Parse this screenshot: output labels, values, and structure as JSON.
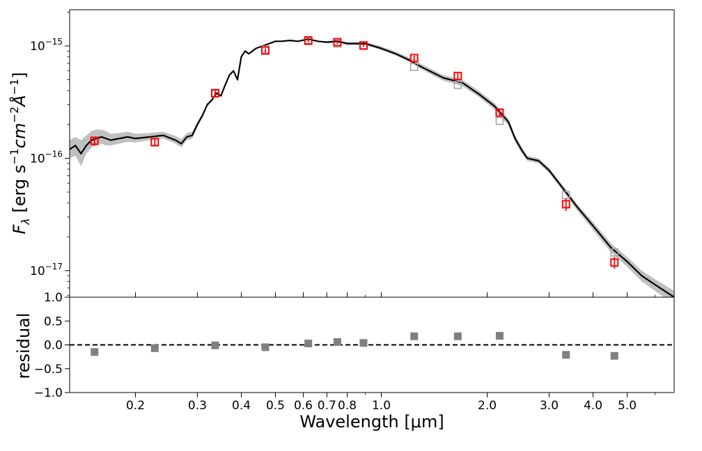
{
  "chart_data": {
    "type": "scatter",
    "xscale": "log",
    "xlim": [
      0.13,
      6.8
    ],
    "xlabel": "Wavelength [μm]",
    "x_ticks": [
      {
        "value": 0.2,
        "label": "0.2"
      },
      {
        "value": 0.3,
        "label": "0.3"
      },
      {
        "value": 0.4,
        "label": "0.4"
      },
      {
        "value": 0.5,
        "label": "0.5"
      },
      {
        "value": 0.6,
        "label": "0.6"
      },
      {
        "value": 0.7,
        "label": "0.7"
      },
      {
        "value": 0.8,
        "label": "0.8"
      },
      {
        "value": 1.0,
        "label": "1.0"
      },
      {
        "value": 2.0,
        "label": "2.0"
      },
      {
        "value": 3.0,
        "label": "3.0"
      },
      {
        "value": 4.0,
        "label": "4.0"
      },
      {
        "value": 5.0,
        "label": "5.0"
      }
    ],
    "sed_panel": {
      "yscale": "log",
      "ylim": [
        5.8e-18,
        2.1e-15
      ],
      "ylabel_parts": {
        "symbol": "F",
        "symbol_sub": "λ",
        "open": " [erg s",
        "exp1": "−1",
        "cm": "cm",
        "exp2": "−2",
        "ang": "Å",
        "exp3": "−1",
        "close": "]"
      },
      "y_ticks": [
        {
          "value": 1e-15,
          "base": "10",
          "exp": "−15"
        },
        {
          "value": 1e-16,
          "base": "10",
          "exp": "−16"
        },
        {
          "value": 1e-17,
          "base": "10",
          "exp": "−17"
        }
      ],
      "model_spectrum": {
        "color": "#000000",
        "band_color": "#c0c0c0",
        "x": [
          0.13,
          0.135,
          0.14,
          0.145,
          0.15,
          0.155,
          0.16,
          0.165,
          0.17,
          0.18,
          0.19,
          0.2,
          0.22,
          0.24,
          0.26,
          0.27,
          0.28,
          0.29,
          0.3,
          0.31,
          0.32,
          0.33,
          0.34,
          0.35,
          0.36,
          0.37,
          0.38,
          0.39,
          0.4,
          0.41,
          0.42,
          0.44,
          0.46,
          0.48,
          0.5,
          0.52,
          0.55,
          0.58,
          0.62,
          0.66,
          0.7,
          0.75,
          0.8,
          0.9,
          1.0,
          1.1,
          1.2,
          1.3,
          1.5,
          1.7,
          1.9,
          2.1,
          2.3,
          2.4,
          2.5,
          2.6,
          2.8,
          3.0,
          3.3,
          3.6,
          4.0,
          4.5,
          5.0,
          5.5,
          6.0,
          6.8
        ],
        "y": [
          1.2e-16,
          1.3e-16,
          1.1e-16,
          1.3e-16,
          1.45e-16,
          1.5e-16,
          1.55e-16,
          1.5e-16,
          1.45e-16,
          1.5e-16,
          1.55e-16,
          1.5e-16,
          1.55e-16,
          1.6e-16,
          1.45e-16,
          1.35e-16,
          1.55e-16,
          1.6e-16,
          2e-16,
          2.4e-16,
          3e-16,
          3.3e-16,
          3.8e-16,
          3.6e-16,
          4.5e-16,
          5.5e-16,
          6e-16,
          5e-16,
          8e-16,
          9e-16,
          8.5e-16,
          9.5e-16,
          1e-15,
          1.05e-15,
          1.1e-15,
          1.1e-15,
          1.12e-15,
          1.1e-15,
          1.15e-15,
          1.1e-15,
          1.08e-15,
          1.1e-15,
          1.05e-15,
          1.05e-15,
          9.5e-16,
          8.5e-16,
          7.5e-16,
          6.5e-16,
          5.2e-16,
          4.7e-16,
          3.7e-16,
          2.9e-16,
          2.1e-16,
          1.5e-16,
          1.2e-16,
          1e-16,
          9.5e-17,
          7.8e-17,
          5.3e-17,
          3.7e-17,
          2.5e-17,
          1.6e-17,
          1.2e-17,
          9e-18,
          7.5e-18,
          5.8e-18
        ],
        "lower": [
          1e-16,
          1.05e-16,
          8.5e-17,
          1.1e-16,
          1.25e-16,
          1.3e-16,
          1.35e-16,
          1.3e-16,
          1.3e-16,
          1.35e-16,
          1.4e-16,
          1.38e-16,
          1.45e-16,
          1.5e-16,
          1.35e-16,
          1.25e-16,
          1.45e-16,
          1.5e-16,
          1.9e-16,
          2.3e-16,
          2.9e-16,
          3.2e-16,
          3.7e-16,
          3.5e-16,
          4.4e-16,
          5.4e-16,
          5.9e-16,
          4.9e-16,
          7.9e-16,
          8.9e-16,
          8.4e-16,
          9.4e-16,
          9.9e-16,
          1.04e-15,
          1.09e-15,
          1.09e-15,
          1.11e-15,
          1.09e-15,
          1.14e-15,
          1.09e-15,
          1.06e-15,
          1.07e-15,
          1.02e-15,
          1.02e-15,
          9.2e-16,
          8.2e-16,
          7.2e-16,
          6.2e-16,
          4.9e-16,
          4.4e-16,
          3.5e-16,
          2.7e-16,
          1.95e-16,
          1.4e-16,
          1.12e-16,
          9.5e-17,
          9e-17,
          7.4e-17,
          5e-17,
          3.45e-17,
          2.3e-17,
          1.45e-17,
          1.08e-17,
          8e-18,
          6.6e-18,
          5e-18
        ],
        "upper": [
          1.45e-16,
          1.55e-16,
          1.45e-16,
          1.6e-16,
          1.75e-16,
          1.8e-16,
          1.8e-16,
          1.75e-16,
          1.65e-16,
          1.68e-16,
          1.72e-16,
          1.65e-16,
          1.68e-16,
          1.72e-16,
          1.58e-16,
          1.48e-16,
          1.68e-16,
          1.72e-16,
          2.1e-16,
          2.5e-16,
          3.1e-16,
          3.4e-16,
          3.9e-16,
          3.7e-16,
          4.6e-16,
          5.6e-16,
          6.1e-16,
          5.1e-16,
          8.1e-16,
          9.1e-16,
          8.6e-16,
          9.6e-16,
          1.01e-15,
          1.06e-15,
          1.11e-15,
          1.11e-15,
          1.13e-15,
          1.11e-15,
          1.16e-15,
          1.11e-15,
          1.1e-15,
          1.13e-15,
          1.08e-15,
          1.09e-15,
          9.9e-16,
          8.9e-16,
          7.9e-16,
          6.9e-16,
          5.5e-16,
          5e-16,
          3.95e-16,
          3.1e-16,
          2.25e-16,
          1.6e-16,
          1.28e-16,
          1.05e-16,
          1e-16,
          8.2e-17,
          5.6e-17,
          3.95e-17,
          2.7e-17,
          1.75e-17,
          1.32e-17,
          1e-17,
          8.4e-18,
          6.6e-18
        ]
      },
      "model_photometry": {
        "color": "#a0a0a0",
        "x": [
          0.153,
          0.227,
          0.337,
          0.468,
          0.62,
          0.75,
          0.89,
          1.24,
          1.65,
          2.17,
          3.35,
          4.6
        ],
        "y": [
          1.42e-16,
          1.4e-16,
          3.75e-16,
          9.3e-16,
          1.1e-15,
          1.05e-15,
          1e-15,
          6.5e-16,
          4.5e-16,
          2.15e-16,
          4.7e-17,
          1.45e-17
        ]
      },
      "observed": {
        "color": "#ff0000",
        "x": [
          0.153,
          0.227,
          0.337,
          0.468,
          0.62,
          0.75,
          0.89,
          1.24,
          1.65,
          2.17,
          3.35,
          4.6
        ],
        "y": [
          1.43e-16,
          1.39e-16,
          3.8e-16,
          9.1e-16,
          1.12e-15,
          1.08e-15,
          1.01e-15,
          7.8e-16,
          5.4e-16,
          2.55e-16,
          3.9e-17,
          1.18e-17
        ],
        "yerr_low": [
          1.3e-16,
          1.3e-16,
          3.6e-16,
          8.7e-16,
          1.08e-15,
          1.04e-15,
          9.8e-16,
          7.4e-16,
          5.1e-16,
          2.42e-16,
          3.4e-17,
          1.04e-17
        ],
        "yerr_high": [
          1.56e-16,
          1.48e-16,
          4e-16,
          9.5e-16,
          1.16e-15,
          1.12e-15,
          1.04e-15,
          8.2e-16,
          5.7e-16,
          2.68e-16,
          4.4e-17,
          1.32e-17
        ]
      }
    },
    "residual_panel": {
      "ylabel": "residual",
      "ylim": [
        -1.0,
        1.0
      ],
      "y_ticks": [
        {
          "value": -1.0,
          "label": "−1.0"
        },
        {
          "value": -0.5,
          "label": "−0.5"
        },
        {
          "value": 0.0,
          "label": "0.0"
        },
        {
          "value": 0.5,
          "label": "0.5"
        },
        {
          "value": 1.0,
          "label": "1.0"
        }
      ],
      "zero_line": 0.0,
      "marker_color": "#808080",
      "x": [
        0.153,
        0.227,
        0.337,
        0.468,
        0.62,
        0.75,
        0.89,
        1.24,
        1.65,
        2.17,
        3.35,
        4.6
      ],
      "y": [
        -0.15,
        -0.07,
        -0.01,
        -0.05,
        0.03,
        0.06,
        0.04,
        0.18,
        0.18,
        0.19,
        -0.21,
        -0.23
      ]
    }
  }
}
